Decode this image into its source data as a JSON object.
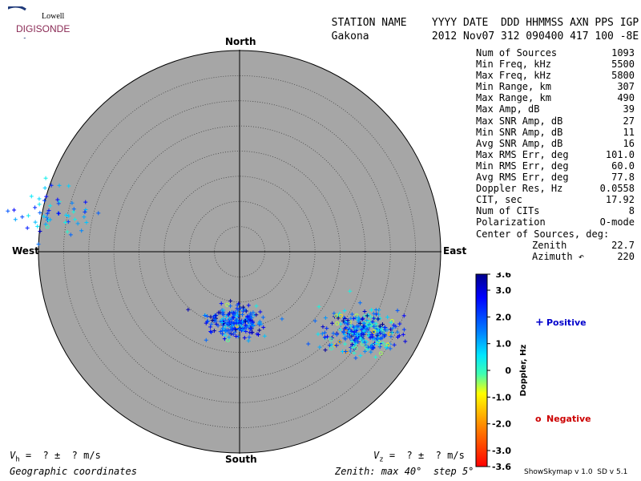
{
  "logo": {
    "line1": "Lowell",
    "line2": "DIGISONDE"
  },
  "header": {
    "col_station": "STATION NAME",
    "col_dates": "YYYY DATE  DDD HHMMSS AXN PPS IGP",
    "station": "Gakona",
    "values": "2012 Nov07 312 090400 417 100 -8E"
  },
  "stats": [
    {
      "label": "Num of Sources",
      "value": "1093"
    },
    {
      "label": "Min Freq, kHz",
      "value": "5500"
    },
    {
      "label": "Max Freq, kHz",
      "value": "5800"
    },
    {
      "label": "Min Range, km",
      "value": "307"
    },
    {
      "label": "Max Range, km",
      "value": "490"
    },
    {
      "label": "Max Amp, dB",
      "value": "39"
    },
    {
      "label": "Max SNR Amp, dB",
      "value": "27"
    },
    {
      "label": "Min SNR Amp, dB",
      "value": "11"
    },
    {
      "label": "Avg SNR Amp, dB",
      "value": "16"
    },
    {
      "label": "Max RMS Err, deg",
      "value": "101.0"
    },
    {
      "label": "Min RMS Err, deg",
      "value": "60.0"
    },
    {
      "label": "Avg RMS Err, deg",
      "value": "77.8"
    },
    {
      "label": "Doppler Res, Hz",
      "value": "0.0558"
    },
    {
      "label": "CIT, sec",
      "value": "17.92"
    },
    {
      "label": "Num of CITs",
      "value": "8"
    },
    {
      "label": "Polarization",
      "value": "O-mode"
    },
    {
      "label": "Center of Sources, deg:",
      "value": ""
    },
    {
      "label": "Zenith",
      "value": "22.7",
      "indent": true
    },
    {
      "label": "Azimuth ↶",
      "value": "220",
      "indent": true
    }
  ],
  "directions": {
    "north": "North",
    "south": "South",
    "east": "East",
    "west": "West"
  },
  "footer": {
    "vh": "V",
    "vh_sub": "h",
    "vh_rest": " =  ? ±  ? m/s",
    "vz": "V",
    "vz_sub": "z",
    "vz_rest": " =  ? ±  ? m/s",
    "coords": "Geographic coordinates",
    "zenith_info": "Zenith: max 40°  step 5°",
    "version": "ShowSkymap v 1.0  SD v 5.1"
  },
  "colorbar": {
    "title": "Doppler, Hz",
    "ticks": [
      "3.6",
      "3.0",
      "2.0",
      "1.0",
      "0",
      "-1.0",
      "-2.0",
      "-3.0",
      "-3.6"
    ],
    "tick_values": [
      3.6,
      3.0,
      2.0,
      1.0,
      0,
      -1.0,
      -2.0,
      -3.0,
      -3.6
    ],
    "range": [
      -3.6,
      3.6
    ]
  },
  "legend": {
    "positive": {
      "symbol": "+",
      "label": "Positive",
      "color": "#0000cc"
    },
    "negative": {
      "symbol": "o",
      "label": "Negative",
      "color": "#cc0000"
    }
  },
  "chart_data": {
    "type": "scatter",
    "projection": "polar skymap",
    "zenith_max_deg": 40,
    "zenith_step_deg": 5,
    "background": "#a6a6a6",
    "clusters": [
      {
        "zenith_deg": 38,
        "azimuth_deg": 282,
        "spread_deg": 3.2,
        "count": 55,
        "doppler_mean": 1.4,
        "doppler_sd": 0.8
      },
      {
        "zenith_deg": 14,
        "azimuth_deg": 183,
        "spread_deg": 2.0,
        "count": 220,
        "doppler_mean": 2.0,
        "doppler_sd": 0.9
      },
      {
        "zenith_deg": 29,
        "azimuth_deg": 124,
        "spread_deg": 2.6,
        "count": 320,
        "doppler_mean": 1.3,
        "doppler_sd": 1.2
      }
    ]
  }
}
